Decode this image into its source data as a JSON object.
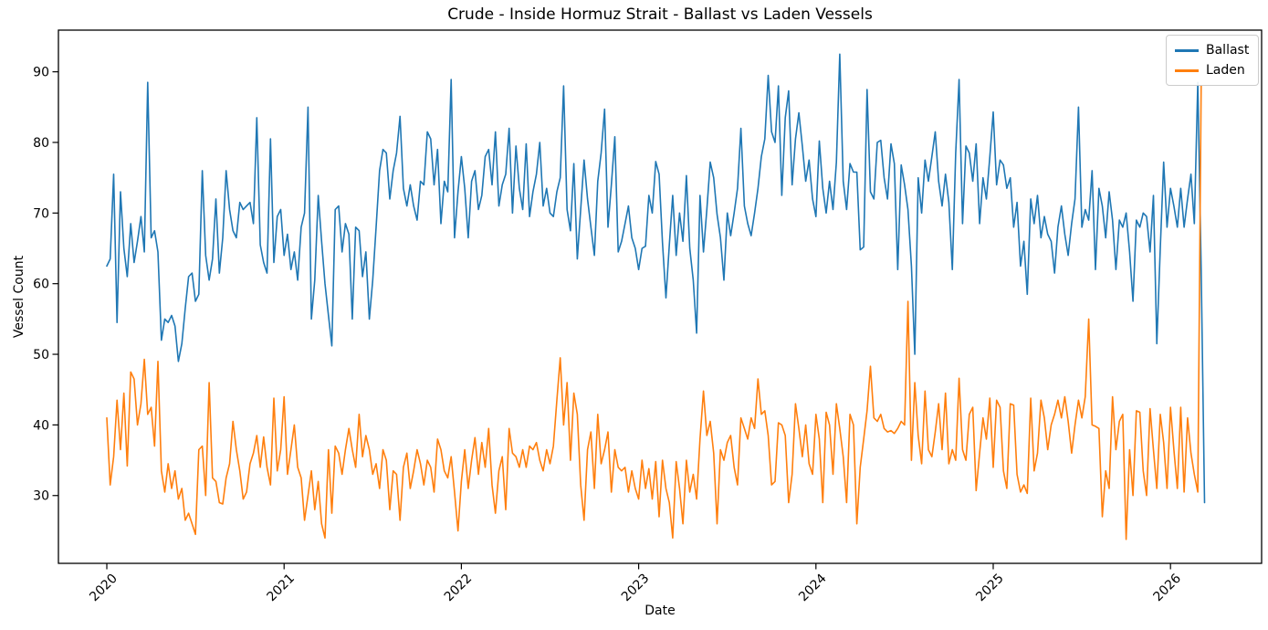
{
  "figure": {
    "background": "#ffffff",
    "axes_edge_color": "#000000"
  },
  "chart_data": {
    "type": "line",
    "title": "Crude - Inside Hormuz Strait - Ballast vs Laden Vessels",
    "xlabel": "Date",
    "ylabel": "Vessel Count",
    "grid": false,
    "legend_position": "upper right",
    "x_ticks": [
      2020,
      2021,
      2022,
      2023,
      2024,
      2025,
      2026
    ],
    "x_tick_rotation": 45,
    "y_ticks": [
      30,
      40,
      50,
      60,
      70,
      80,
      90
    ],
    "xlim": [
      2019.727,
      2026.514
    ],
    "ylim": [
      20.4,
      95.9
    ],
    "x_start": 2020.0,
    "x_step_years": 0.019230769,
    "series": [
      {
        "name": "Ballast",
        "color": "#1f77b4",
        "values": [
          62.5,
          63.5,
          75.5,
          54.5,
          73,
          65,
          61,
          68.5,
          63,
          66,
          69.5,
          64.5,
          88.5,
          66.5,
          67.5,
          64.5,
          52,
          55,
          54.5,
          55.5,
          54,
          49,
          51.5,
          56.5,
          61,
          61.5,
          57.5,
          58.5,
          76,
          64,
          60.5,
          63.5,
          72,
          61.5,
          66.5,
          76,
          70.5,
          67.5,
          66.5,
          71.5,
          70.5,
          71,
          71.5,
          68.5,
          83.5,
          65.5,
          63,
          61.5,
          80.5,
          63,
          69.5,
          70.5,
          64,
          67,
          62,
          64.5,
          60.5,
          68,
          70,
          85,
          55,
          60.5,
          72.5,
          66,
          60,
          55.5,
          51.2,
          70.5,
          71,
          64.5,
          68.5,
          67,
          55,
          68,
          67.5,
          61,
          64.5,
          55,
          60.5,
          68,
          76,
          79,
          78.5,
          72,
          76,
          78.5,
          83.7,
          73.5,
          71,
          74,
          71,
          69,
          74.5,
          74,
          81.5,
          80.5,
          74,
          79,
          68.5,
          74.5,
          73,
          88.9,
          66.5,
          73,
          78,
          73.5,
          66.5,
          74.5,
          76,
          70.5,
          72.5,
          78,
          79,
          74,
          81.5,
          71,
          74,
          75.5,
          82,
          70,
          79.5,
          73.5,
          70.5,
          79.8,
          69.5,
          73,
          75.5,
          80,
          71,
          73.5,
          70,
          69.5,
          73,
          75,
          88,
          70.5,
          67.5,
          77,
          63.5,
          70.5,
          77.5,
          72,
          68,
          64,
          74.5,
          78.5,
          84.7,
          68,
          74,
          80.8,
          64.5,
          66,
          68.5,
          71,
          66.5,
          65,
          62,
          65,
          65.3,
          72.5,
          70,
          77.3,
          75.5,
          65.8,
          58,
          65.5,
          72.5,
          64,
          70,
          66,
          75.3,
          65,
          60.5,
          53,
          72.5,
          64.5,
          70.5,
          77.2,
          75,
          69.8,
          66.5,
          60.5,
          70,
          66.8,
          70,
          73.5,
          82,
          71,
          68.5,
          66.8,
          70,
          73.5,
          78,
          80.5,
          89.5,
          81.5,
          80,
          88,
          72.5,
          83.5,
          87.3,
          74,
          80.5,
          84.2,
          79.5,
          74.5,
          77.5,
          72,
          69.5,
          80.2,
          73.5,
          70,
          74.5,
          70.5,
          77.2,
          92.5,
          74.5,
          70.5,
          77,
          75.8,
          75.8,
          64.8,
          65.2,
          87.5,
          73,
          72,
          80,
          80.3,
          75,
          72,
          79.8,
          77,
          62,
          76.8,
          74,
          70.5,
          62.5,
          50,
          75,
          70,
          77.5,
          74.5,
          78,
          81.5,
          74.5,
          71,
          75.5,
          71.5,
          62,
          78.5,
          88.9,
          68.5,
          79.5,
          78.5,
          74.5,
          79.8,
          68.5,
          75,
          72,
          78,
          84.3,
          74,
          77.5,
          76.8,
          73.5,
          75,
          68,
          71.5,
          62.5,
          66,
          58.5,
          72,
          68.5,
          72.5,
          66.5,
          69.5,
          67,
          66,
          61.5,
          68,
          71,
          67,
          64,
          68.5,
          72,
          85,
          68,
          70.5,
          69,
          76,
          62,
          73.5,
          71,
          66.5,
          73,
          69,
          62,
          69,
          68,
          70,
          64.5,
          57.5,
          69,
          68,
          70,
          69.5,
          64.5,
          72.5,
          51.5,
          65,
          77.2,
          68,
          73.5,
          71,
          68,
          73.5,
          68,
          72,
          75.5,
          68.5,
          88.5,
          62,
          29
        ]
      },
      {
        "name": "Laden",
        "color": "#ff7f0e",
        "values": [
          41,
          31.5,
          35.5,
          43.5,
          36.5,
          44.5,
          34.2,
          47.5,
          46.5,
          40,
          43,
          49.3,
          41.5,
          42.5,
          37,
          49,
          33.5,
          30.5,
          34.5,
          31,
          33.5,
          29.5,
          31,
          26.5,
          27.5,
          26,
          24.5,
          36.5,
          37,
          30,
          46,
          32.5,
          32,
          29,
          28.8,
          32.5,
          34.5,
          40.5,
          36.5,
          33.5,
          29.5,
          30.5,
          34.5,
          36,
          38.5,
          34,
          38.3,
          34,
          31.5,
          43.8,
          33.5,
          36.5,
          44,
          33,
          36.5,
          40,
          34,
          32.5,
          26.5,
          30,
          33.5,
          28,
          32,
          26,
          24,
          36.5,
          27.5,
          37,
          36,
          33,
          36.5,
          39.5,
          36.5,
          34,
          41.5,
          35.5,
          38.5,
          36.5,
          33,
          34.5,
          31,
          36.5,
          35,
          28,
          33.5,
          33,
          26.5,
          34,
          36,
          31,
          33.5,
          36.5,
          34.5,
          31.5,
          35,
          34,
          30.5,
          38,
          36.5,
          33.5,
          32.5,
          35.5,
          30.5,
          25,
          32,
          36.5,
          31,
          35,
          38.2,
          33,
          37.5,
          34,
          39.5,
          31.5,
          27.5,
          33.5,
          35.5,
          28,
          39.5,
          36,
          35.5,
          34,
          36.5,
          34,
          37,
          36.5,
          37.5,
          35,
          33.5,
          36.5,
          34.5,
          37,
          43.5,
          49.5,
          40,
          46,
          35,
          44.5,
          41.5,
          31.5,
          26.5,
          36.5,
          39,
          31,
          41.5,
          34.5,
          36.5,
          39,
          30.5,
          36.5,
          34,
          33.5,
          34,
          30.5,
          33.5,
          31,
          29.5,
          35,
          31,
          33.8,
          29.5,
          34.8,
          27,
          35,
          31,
          29,
          24,
          34.8,
          31,
          26,
          35,
          30.5,
          33,
          29.5,
          38,
          44.8,
          38.5,
          40.5,
          36,
          26,
          36.5,
          35,
          37.5,
          38.5,
          34,
          31.5,
          41,
          39.5,
          38,
          41,
          39.5,
          46.5,
          41.5,
          42,
          38.5,
          31.5,
          32,
          40.3,
          40,
          38.5,
          29,
          33,
          43,
          39.5,
          35.5,
          40,
          34.5,
          33,
          41.5,
          38,
          29,
          41.8,
          40,
          33,
          43,
          39.5,
          35.5,
          29,
          41.5,
          40,
          26,
          34,
          38,
          42,
          48.3,
          41,
          40.5,
          41.5,
          39.5,
          39,
          39.2,
          38.8,
          39.5,
          40.5,
          40,
          57.5,
          35,
          46,
          38.5,
          34.5,
          44.8,
          36.5,
          35.5,
          39,
          43,
          36.5,
          44.5,
          34.5,
          36.5,
          35,
          46.6,
          36.5,
          35,
          41.5,
          42.5,
          30.7,
          36,
          41,
          38,
          43.8,
          34,
          43.5,
          42.5,
          33.5,
          31,
          43,
          42.8,
          33,
          30.5,
          31.5,
          30.3,
          43.8,
          33.5,
          36,
          43.5,
          41,
          36.5,
          40,
          41.5,
          43.5,
          41,
          44,
          40.5,
          36,
          40,
          43.5,
          41,
          44,
          55,
          40,
          39.8,
          39.5,
          27,
          33.5,
          31,
          44,
          36.5,
          40.5,
          41.5,
          23.8,
          36.5,
          30,
          42,
          41.8,
          33.5,
          30,
          42.3,
          36.5,
          31,
          41.5,
          37.5,
          31,
          42.5,
          36.5,
          31,
          42.5,
          30.5,
          41,
          36,
          33,
          30.5,
          88
        ]
      }
    ]
  }
}
